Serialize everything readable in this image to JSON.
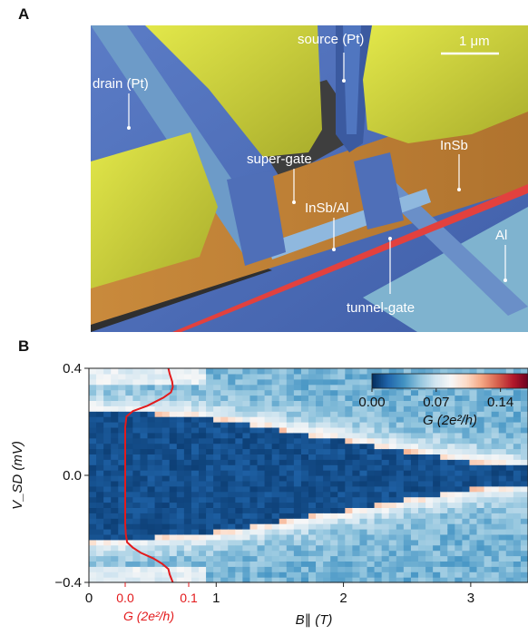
{
  "panel_a": {
    "letter": "A",
    "labels": {
      "source": "source (Pt)",
      "drain": "drain (Pt)",
      "super_gate": "super-gate",
      "insb": "InSb",
      "insb_al": "InSb/Al",
      "al": "Al",
      "tunnel_gate": "tunnel-gate",
      "scale_bar": "1 μm"
    }
  },
  "panel_b": {
    "letter": "B",
    "colorbar": {
      "tick_labels": [
        "0.00",
        "0.07",
        "0.14"
      ],
      "ticks": [
        0.0,
        0.07,
        0.14
      ],
      "range": [
        0.0,
        0.17
      ],
      "label": "G (2e²/h)",
      "colors": [
        "#053061",
        "#2166ac",
        "#4393c3",
        "#92c5de",
        "#d1e5f0",
        "#f7f7f7",
        "#fddbc7",
        "#f4a582",
        "#d6604d",
        "#b2182b",
        "#67001f"
      ]
    },
    "overlay_axis": {
      "tick_labels": [
        "0.0",
        "0.1"
      ],
      "ticks": [
        0.0,
        0.1
      ],
      "label": "G (2e²/h)",
      "color": "#e31a1c"
    }
  },
  "chart_data": {
    "type": "heatmap",
    "xlabel": "B∥ (T)",
    "ylabel": "V_SD (mV)",
    "xlim": [
      0,
      3.45
    ],
    "ylim": [
      -0.4,
      0.4
    ],
    "x_ticks": [
      0,
      1,
      2,
      3
    ],
    "x_tick_labels": [
      "0",
      "1",
      "2",
      "3"
    ],
    "y_ticks": [
      -0.4,
      0.0,
      0.4
    ],
    "y_tick_labels": [
      "−0.4",
      "0.0",
      "0.4"
    ],
    "gap_edge_vs_field": {
      "B": [
        0.0,
        0.5,
        1.0,
        1.5,
        2.0,
        2.5,
        3.0,
        3.45
      ],
      "V_edge": [
        0.24,
        0.23,
        0.21,
        0.17,
        0.13,
        0.09,
        0.05,
        0.03
      ]
    },
    "linecut_B0": {
      "V": [
        -0.4,
        -0.37,
        -0.35,
        -0.33,
        -0.31,
        -0.29,
        -0.27,
        -0.25,
        -0.22,
        -0.18,
        -0.1,
        0.0,
        0.1,
        0.18,
        0.22,
        0.24,
        0.26,
        0.29,
        0.31,
        0.33,
        0.35,
        0.38,
        0.4
      ],
      "G": [
        0.075,
        0.07,
        0.068,
        0.058,
        0.044,
        0.025,
        0.012,
        0.003,
        0.001,
        0.0,
        0.0,
        0.0,
        0.0,
        0.0,
        0.002,
        0.012,
        0.035,
        0.06,
        0.072,
        0.075,
        0.074,
        0.07,
        0.068
      ]
    }
  }
}
